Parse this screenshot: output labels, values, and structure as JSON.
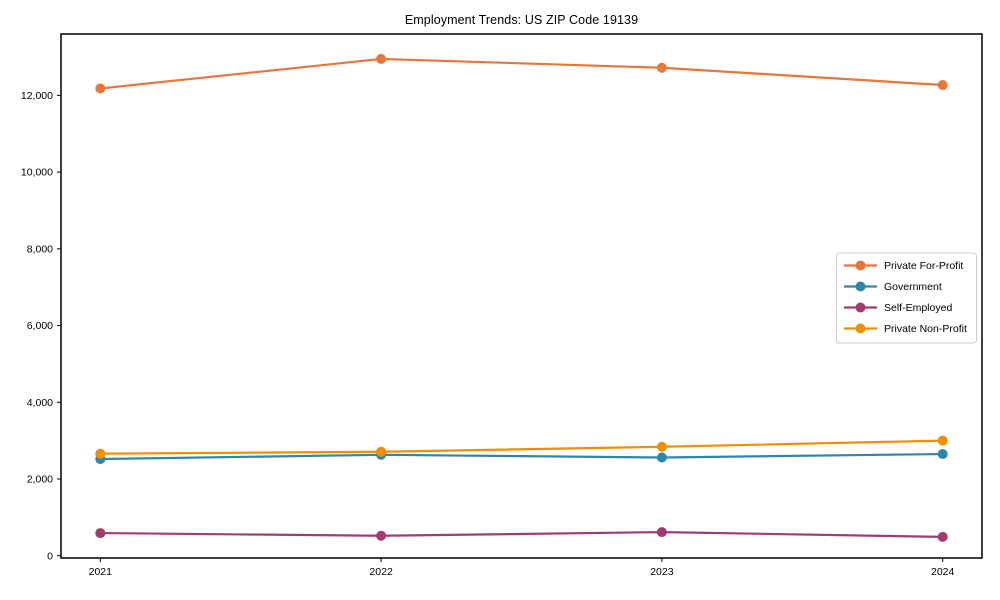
{
  "chart_data": {
    "type": "line",
    "title": "Employment Trends: US ZIP Code 19139",
    "x": [
      2021,
      2022,
      2023,
      2024
    ],
    "x_tick_labels": [
      "2021",
      "2022",
      "2023",
      "2024"
    ],
    "series": [
      {
        "name": "Private For-Profit",
        "color": "#E8763B",
        "values": [
          12180,
          12950,
          12720,
          12270
        ]
      },
      {
        "name": "Government",
        "color": "#2E86AB",
        "values": [
          2520,
          2630,
          2560,
          2650
        ]
      },
      {
        "name": "Self-Employed",
        "color": "#A23B72",
        "values": [
          590,
          520,
          615,
          490
        ]
      },
      {
        "name": "Private Non-Profit",
        "color": "#F18F01",
        "values": [
          2660,
          2710,
          2840,
          3000
        ]
      }
    ],
    "yticks": [
      {
        "v": 0,
        "label": "0"
      },
      {
        "v": 2000,
        "label": "2,000"
      },
      {
        "v": 4000,
        "label": "4,000"
      },
      {
        "v": 6000,
        "label": "6,000"
      },
      {
        "v": 8000,
        "label": "8,000"
      },
      {
        "v": 10000,
        "label": "10,000"
      },
      {
        "v": 12000,
        "label": "12,000"
      }
    ],
    "xlim": [
      2020.86,
      2024.14
    ],
    "ylim": [
      -60,
      13600
    ],
    "grid": false,
    "legend_position": "right",
    "frame_color": "#000000",
    "tick_color": "#000000",
    "legend_border_color": "#cccccc",
    "background_color": "#ffffff"
  }
}
